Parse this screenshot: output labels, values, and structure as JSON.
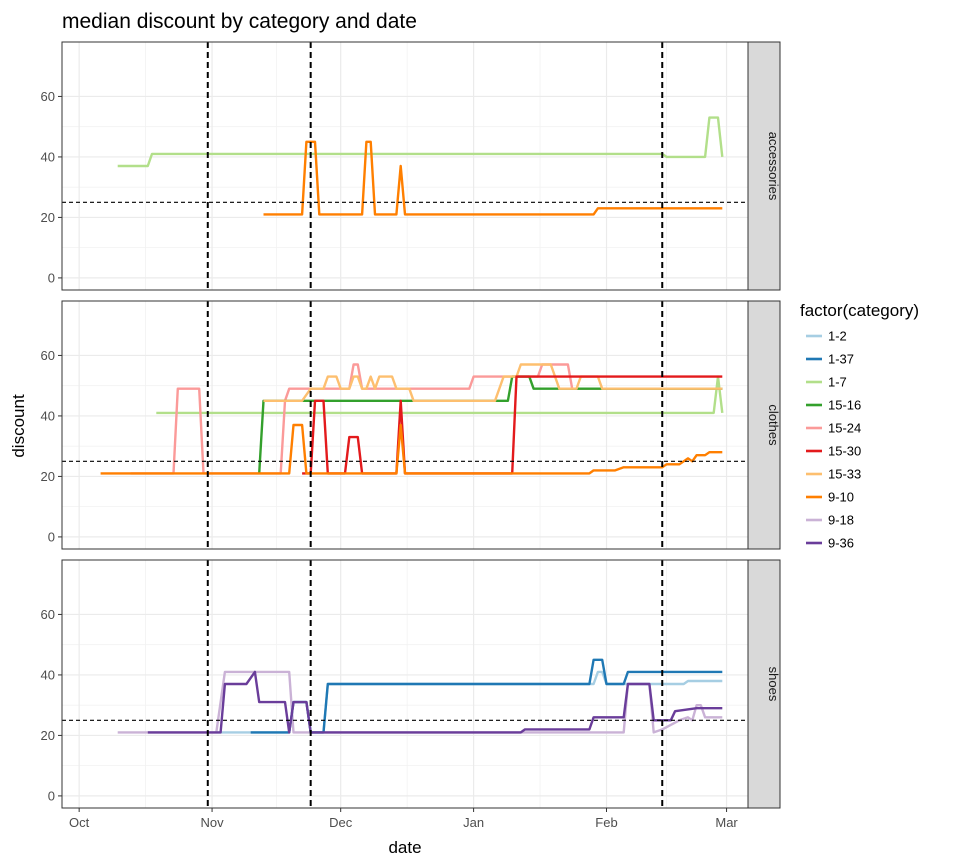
{
  "chart_data": {
    "type": "line",
    "title": "median discount by category and date",
    "xlabel": "date",
    "ylabel": "discount",
    "x_ticks": [
      "Oct",
      "Nov",
      "Dec",
      "Jan",
      "Feb",
      "Mar"
    ],
    "x_tick_dates": [
      "2017-10-01",
      "2017-11-01",
      "2017-12-01",
      "2018-01-01",
      "2018-02-01",
      "2018-03-01"
    ],
    "xlim": [
      "2017-09-27",
      "2018-03-06"
    ],
    "ylim": [
      -4,
      78
    ],
    "y_ticks": [
      0,
      20,
      40,
      60
    ],
    "grid": true,
    "legend": {
      "title": "factor(category)",
      "position": "right"
    },
    "vlines": [
      "2017-10-31",
      "2017-11-24",
      "2018-02-14"
    ],
    "hline": 25,
    "facets": [
      "accessories",
      "clothes",
      "shoes"
    ],
    "colors": {
      "1-2": "#a6cee3",
      "1-37": "#1f78b4",
      "1-7": "#b2df8a",
      "15-16": "#33a02c",
      "15-24": "#fb9a99",
      "15-30": "#e31a1c",
      "15-33": "#fdbf6f",
      "9-10": "#ff7f00",
      "9-18": "#cab2d6",
      "9-36": "#6a3d9a"
    },
    "categories": [
      "1-2",
      "1-37",
      "1-7",
      "15-16",
      "15-24",
      "15-30",
      "15-33",
      "9-10",
      "9-18",
      "9-36"
    ],
    "panels": [
      {
        "facet": "accessories",
        "series": [
          {
            "name": "1-7",
            "points": [
              [
                "2017-10-10",
                37
              ],
              [
                "2017-10-17",
                37
              ],
              [
                "2017-10-18",
                41
              ],
              [
                "2018-02-14",
                41
              ],
              [
                "2018-02-15",
                40
              ],
              [
                "2018-02-24",
                40
              ],
              [
                "2018-02-25",
                53
              ],
              [
                "2018-02-27",
                53
              ],
              [
                "2018-02-28",
                40
              ]
            ]
          },
          {
            "name": "9-10",
            "points": [
              [
                "2017-11-13",
                21
              ],
              [
                "2017-11-22",
                21
              ],
              [
                "2017-11-23",
                45
              ],
              [
                "2017-11-25",
                45
              ],
              [
                "2017-11-26",
                21
              ],
              [
                "2017-12-06",
                21
              ],
              [
                "2017-12-07",
                45
              ],
              [
                "2017-12-08",
                45
              ],
              [
                "2017-12-09",
                21
              ],
              [
                "2017-12-14",
                21
              ],
              [
                "2017-12-15",
                37
              ],
              [
                "2017-12-16",
                21
              ],
              [
                "2018-01-29",
                21
              ],
              [
                "2018-01-30",
                23
              ],
              [
                "2018-02-28",
                23
              ]
            ]
          }
        ]
      },
      {
        "facet": "clothes",
        "series": [
          {
            "name": "1-7",
            "points": [
              [
                "2017-10-19",
                41
              ],
              [
                "2018-02-26",
                41
              ],
              [
                "2018-02-27",
                53
              ],
              [
                "2018-02-28",
                41
              ]
            ]
          },
          {
            "name": "15-24",
            "points": [
              [
                "2017-10-13",
                21
              ],
              [
                "2017-10-23",
                21
              ],
              [
                "2017-10-24",
                49
              ],
              [
                "2017-10-29",
                49
              ],
              [
                "2017-10-30",
                21
              ],
              [
                "2017-11-17",
                21
              ],
              [
                "2017-11-18",
                45
              ],
              [
                "2017-11-19",
                49
              ],
              [
                "2017-12-03",
                49
              ],
              [
                "2017-12-04",
                57
              ],
              [
                "2017-12-05",
                57
              ],
              [
                "2017-12-06",
                49
              ],
              [
                "2017-12-31",
                49
              ],
              [
                "2018-01-01",
                53
              ],
              [
                "2018-01-16",
                53
              ],
              [
                "2018-01-17",
                57
              ],
              [
                "2018-01-23",
                57
              ],
              [
                "2018-01-24",
                49
              ],
              [
                "2018-02-28",
                49
              ]
            ]
          },
          {
            "name": "15-16",
            "points": [
              [
                "2017-11-12",
                21
              ],
              [
                "2017-11-13",
                45
              ],
              [
                "2017-11-19",
                45
              ],
              [
                "2018-01-09",
                45
              ],
              [
                "2018-01-10",
                53
              ],
              [
                "2018-01-14",
                53
              ],
              [
                "2018-01-15",
                49
              ],
              [
                "2018-02-28",
                49
              ]
            ]
          },
          {
            "name": "15-33",
            "points": [
              [
                "2017-11-13",
                45
              ],
              [
                "2017-11-22",
                45
              ],
              [
                "2017-11-24",
                49
              ],
              [
                "2017-11-27",
                49
              ],
              [
                "2017-11-28",
                53
              ],
              [
                "2017-11-30",
                53
              ],
              [
                "2017-12-01",
                49
              ],
              [
                "2017-12-03",
                49
              ],
              [
                "2017-12-04",
                53
              ],
              [
                "2017-12-05",
                53
              ],
              [
                "2017-12-06",
                49
              ],
              [
                "2017-12-07",
                49
              ],
              [
                "2017-12-08",
                53
              ],
              [
                "2017-12-09",
                49
              ],
              [
                "2017-12-10",
                53
              ],
              [
                "2017-12-13",
                53
              ],
              [
                "2017-12-14",
                49
              ],
              [
                "2017-12-17",
                49
              ],
              [
                "2017-12-18",
                45
              ],
              [
                "2017-12-30",
                45
              ],
              [
                "2018-01-06",
                45
              ],
              [
                "2018-01-08",
                53
              ],
              [
                "2018-01-11",
                53
              ],
              [
                "2018-01-12",
                57
              ],
              [
                "2018-01-19",
                57
              ],
              [
                "2018-01-21",
                49
              ],
              [
                "2018-01-25",
                49
              ],
              [
                "2018-01-26",
                53
              ],
              [
                "2018-01-30",
                53
              ],
              [
                "2018-01-31",
                49
              ],
              [
                "2018-02-28",
                49
              ]
            ]
          },
          {
            "name": "15-30",
            "points": [
              [
                "2017-11-22",
                21
              ],
              [
                "2017-11-24",
                21
              ],
              [
                "2017-11-25",
                45
              ],
              [
                "2017-11-27",
                45
              ],
              [
                "2017-11-28",
                21
              ],
              [
                "2017-12-02",
                21
              ],
              [
                "2017-12-03",
                33
              ],
              [
                "2017-12-05",
                33
              ],
              [
                "2017-12-06",
                21
              ],
              [
                "2017-12-14",
                21
              ],
              [
                "2017-12-15",
                45
              ],
              [
                "2017-12-16",
                21
              ],
              [
                "2018-01-10",
                21
              ],
              [
                "2018-01-11",
                53
              ],
              [
                "2018-02-28",
                53
              ]
            ]
          },
          {
            "name": "9-10",
            "points": [
              [
                "2017-10-06",
                21
              ],
              [
                "2017-11-19",
                21
              ],
              [
                "2017-11-20",
                37
              ],
              [
                "2017-11-22",
                37
              ],
              [
                "2017-11-23",
                21
              ],
              [
                "2017-12-14",
                21
              ],
              [
                "2017-12-15",
                37
              ],
              [
                "2017-12-16",
                21
              ],
              [
                "2018-01-28",
                21
              ],
              [
                "2018-01-29",
                22
              ],
              [
                "2018-02-03",
                22
              ],
              [
                "2018-02-05",
                23
              ],
              [
                "2018-02-14",
                23
              ],
              [
                "2018-02-15",
                24
              ],
              [
                "2018-02-18",
                24
              ],
              [
                "2018-02-20",
                26
              ],
              [
                "2018-02-21",
                25
              ],
              [
                "2018-02-22",
                27
              ],
              [
                "2018-02-24",
                27
              ],
              [
                "2018-02-25",
                28
              ],
              [
                "2018-02-28",
                28
              ]
            ]
          }
        ]
      },
      {
        "facet": "shoes",
        "series": [
          {
            "name": "9-18",
            "points": [
              [
                "2017-10-10",
                21
              ],
              [
                "2017-11-02",
                21
              ],
              [
                "2017-11-04",
                41
              ],
              [
                "2017-11-19",
                41
              ],
              [
                "2017-11-20",
                21
              ],
              [
                "2018-02-05",
                21
              ],
              [
                "2018-02-06",
                37
              ],
              [
                "2018-02-11",
                37
              ],
              [
                "2018-02-12",
                21
              ],
              [
                "2018-02-14",
                22
              ],
              [
                "2018-02-18",
                25
              ],
              [
                "2018-02-20",
                26
              ],
              [
                "2018-02-21",
                25
              ],
              [
                "2018-02-22",
                30
              ],
              [
                "2018-02-23",
                30
              ],
              [
                "2018-02-24",
                26
              ],
              [
                "2018-02-28",
                26
              ]
            ]
          },
          {
            "name": "1-2",
            "points": [
              [
                "2017-11-02",
                21
              ],
              [
                "2017-11-19",
                21
              ],
              [
                "2017-11-20",
                31
              ],
              [
                "2017-11-23",
                31
              ],
              [
                "2017-11-24",
                21
              ],
              [
                "2017-11-27",
                21
              ],
              [
                "2017-11-28",
                37
              ],
              [
                "2018-01-29",
                37
              ],
              [
                "2018-01-30",
                41
              ],
              [
                "2018-01-31",
                41
              ],
              [
                "2018-02-01",
                37
              ],
              [
                "2018-02-19",
                37
              ],
              [
                "2018-02-20",
                38
              ],
              [
                "2018-02-28",
                38
              ]
            ]
          },
          {
            "name": "1-37",
            "points": [
              [
                "2017-11-10",
                21
              ],
              [
                "2017-11-19",
                21
              ],
              [
                "2017-11-20",
                31
              ],
              [
                "2017-11-23",
                31
              ],
              [
                "2017-11-24",
                21
              ],
              [
                "2017-11-27",
                21
              ],
              [
                "2017-11-28",
                37
              ],
              [
                "2018-01-28",
                37
              ],
              [
                "2018-01-29",
                45
              ],
              [
                "2018-01-31",
                45
              ],
              [
                "2018-02-01",
                37
              ],
              [
                "2018-02-05",
                37
              ],
              [
                "2018-02-06",
                41
              ],
              [
                "2018-02-28",
                41
              ]
            ]
          },
          {
            "name": "9-36",
            "points": [
              [
                "2017-10-17",
                21
              ],
              [
                "2017-11-03",
                21
              ],
              [
                "2017-11-04",
                37
              ],
              [
                "2017-11-09",
                37
              ],
              [
                "2017-11-11",
                41
              ],
              [
                "2017-11-12",
                31
              ],
              [
                "2017-11-18",
                31
              ],
              [
                "2017-11-19",
                21
              ],
              [
                "2017-11-20",
                31
              ],
              [
                "2017-11-23",
                31
              ],
              [
                "2017-11-24",
                21
              ],
              [
                "2018-01-12",
                21
              ],
              [
                "2018-01-13",
                22
              ],
              [
                "2018-01-28",
                22
              ],
              [
                "2018-01-29",
                26
              ],
              [
                "2018-02-05",
                26
              ],
              [
                "2018-02-06",
                37
              ],
              [
                "2018-02-11",
                37
              ],
              [
                "2018-02-12",
                25
              ],
              [
                "2018-02-16",
                25
              ],
              [
                "2018-02-17",
                28
              ],
              [
                "2018-02-22",
                29
              ],
              [
                "2018-02-28",
                29
              ]
            ]
          }
        ]
      }
    ]
  }
}
